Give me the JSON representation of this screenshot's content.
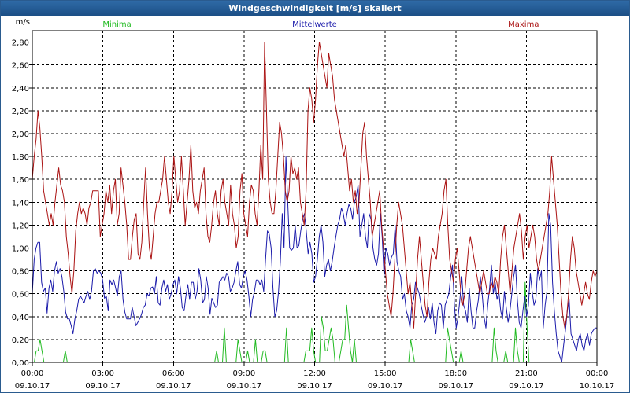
{
  "window": {
    "title": "Windgeschwindigkeit [m/s] skaliert"
  },
  "chart_data": {
    "type": "line",
    "title": "Windgeschwindigkeit [m/s] skaliert",
    "ylabel": "m/s",
    "xlabel": "",
    "ylim": [
      0,
      2.9
    ],
    "xlim": [
      0,
      24
    ],
    "grid": true,
    "yticks": [
      "0,00",
      "0,20",
      "0,40",
      "0,60",
      "0,80",
      "1,00",
      "1,20",
      "1,40",
      "1,60",
      "1,80",
      "2,00",
      "2,20",
      "2,40",
      "2,60",
      "2,80"
    ],
    "xticks": [
      {
        "time": "00:00",
        "date": "09.10.17"
      },
      {
        "time": "03:00",
        "date": "09.10.17"
      },
      {
        "time": "06:00",
        "date": "09.10.17"
      },
      {
        "time": "09:00",
        "date": "09.10.17"
      },
      {
        "time": "12:00",
        "date": "09.10.17"
      },
      {
        "time": "15:00",
        "date": "09.10.17"
      },
      {
        "time": "18:00",
        "date": "09.10.17"
      },
      {
        "time": "21:00",
        "date": "09.10.17"
      },
      {
        "time": "00:00",
        "date": "10.10.17"
      }
    ],
    "series": [
      {
        "name": "Minima",
        "color": "#22bb22",
        "values": [
          0,
          0,
          0.1,
          0.1,
          0.2,
          0.1,
          0,
          0,
          0,
          0,
          0,
          0,
          0,
          0,
          0,
          0,
          0,
          0.1,
          0,
          0,
          0,
          0,
          0,
          0,
          0,
          0,
          0,
          0,
          0,
          0,
          0,
          0,
          0,
          0,
          0,
          0,
          0,
          0,
          0,
          0,
          0,
          0,
          0,
          0,
          0,
          0,
          0,
          0,
          0,
          0,
          0,
          0,
          0,
          0,
          0,
          0,
          0,
          0,
          0,
          0,
          0,
          0,
          0,
          0,
          0,
          0,
          0,
          0,
          0,
          0,
          0,
          0,
          0,
          0,
          0,
          0,
          0,
          0,
          0,
          0,
          0,
          0,
          0,
          0,
          0,
          0,
          0,
          0,
          0,
          0,
          0,
          0,
          0,
          0,
          0,
          0.1,
          0,
          0,
          0,
          0.3,
          0,
          0,
          0,
          0,
          0,
          0,
          0.2,
          0.1,
          0,
          0,
          0,
          0.1,
          0,
          0,
          0,
          0.2,
          0,
          0,
          0,
          0.1,
          0.1,
          0,
          0,
          0,
          0,
          0,
          0,
          0,
          0,
          0,
          0,
          0.3,
          0,
          0,
          0,
          0,
          0,
          0,
          0,
          0,
          0,
          0.1,
          0.1,
          0.1,
          0.3,
          0.1,
          0,
          0,
          0,
          0.4,
          0.3,
          0.1,
          0.1,
          0.2,
          0.3,
          0.2,
          0,
          0,
          0,
          0.1,
          0.2,
          0.2,
          0.5,
          0.3,
          0.1,
          0,
          0.2,
          0,
          0,
          0,
          0,
          0,
          0,
          0,
          0,
          0,
          0,
          0,
          0,
          0,
          0,
          0,
          0,
          0,
          0,
          0,
          0,
          0,
          0,
          0,
          0,
          0,
          0,
          0,
          0,
          0.2,
          0.1,
          0,
          0,
          0,
          0,
          0,
          0,
          0,
          0,
          0,
          0,
          0,
          0,
          0,
          0,
          0,
          0,
          0,
          0.3,
          0.2,
          0.1,
          0,
          0,
          0,
          0,
          0.1,
          0,
          0,
          0,
          0,
          0,
          0,
          0,
          0,
          0,
          0,
          0,
          0,
          0,
          0,
          0,
          0,
          0.3,
          0.1,
          0,
          0,
          0,
          0,
          0.1,
          0,
          0,
          0,
          0,
          0.3,
          0.1,
          0,
          0,
          0,
          0.7,
          0.3,
          0,
          0,
          0,
          0,
          0,
          0,
          0,
          0,
          0,
          0,
          0,
          0,
          0,
          0,
          0,
          0,
          0,
          0,
          0,
          0,
          0,
          0,
          0,
          0,
          0,
          0,
          0,
          0,
          0,
          0,
          0,
          0,
          0,
          0,
          0,
          0
        ]
      },
      {
        "name": "Mittelwerte",
        "color": "#1a1aaa",
        "values": [
          0.6,
          0.9,
          1.0,
          1.05,
          1.05,
          0.7,
          0.62,
          0.65,
          0.43,
          0.65,
          0.72,
          0.62,
          0.8,
          0.88,
          0.78,
          0.82,
          0.75,
          0.62,
          0.44,
          0.38,
          0.38,
          0.32,
          0.25,
          0.38,
          0.45,
          0.55,
          0.58,
          0.55,
          0.52,
          0.58,
          0.62,
          0.55,
          0.62,
          0.8,
          0.82,
          0.78,
          0.8,
          0.78,
          0.72,
          0.56,
          0.58,
          0.45,
          0.72,
          0.68,
          0.72,
          0.65,
          0.58,
          0.75,
          0.8,
          0.55,
          0.44,
          0.38,
          0.38,
          0.38,
          0.48,
          0.4,
          0.32,
          0.35,
          0.38,
          0.42,
          0.48,
          0.5,
          0.6,
          0.58,
          0.65,
          0.66,
          0.6,
          0.75,
          0.52,
          0.5,
          0.65,
          0.72,
          0.62,
          0.68,
          0.55,
          0.6,
          0.68,
          0.72,
          0.6,
          0.75,
          0.65,
          0.48,
          0.45,
          0.58,
          0.68,
          0.55,
          0.7,
          0.7,
          0.55,
          0.62,
          0.82,
          0.72,
          0.52,
          0.55,
          0.75,
          0.65,
          0.42,
          0.56,
          0.52,
          0.48,
          0.5,
          0.7,
          0.72,
          0.75,
          0.72,
          0.78,
          0.75,
          0.62,
          0.65,
          0.7,
          0.8,
          0.88,
          0.68,
          0.65,
          0.75,
          0.8,
          0.72,
          0.58,
          0.4,
          0.55,
          0.62,
          0.72,
          0.72,
          0.68,
          0.72,
          0.62,
          0.9,
          1.15,
          1.12,
          1.0,
          0.65,
          0.4,
          0.45,
          0.62,
          0.88,
          1.3,
          1.0,
          1.8,
          1.4,
          1.0,
          0.98,
          1.0,
          1.2,
          1.0,
          1.02,
          1.15,
          1.25,
          1.3,
          1.15,
          0.95,
          1.05,
          0.95,
          0.7,
          0.75,
          0.9,
          1.1,
          1.2,
          1.05,
          0.75,
          0.85,
          0.9,
          0.8,
          0.88,
          1.0,
          1.1,
          1.2,
          1.25,
          1.35,
          1.3,
          1.2,
          1.3,
          1.38,
          1.35,
          1.25,
          1.4,
          1.45,
          1.55,
          1.1,
          1.2,
          1.3,
          1.1,
          1.0,
          1.3,
          1.25,
          1.0,
          0.9,
          0.85,
          0.95,
          1.3,
          1.1,
          0.75,
          1.0,
          0.95,
          0.85,
          0.92,
          0.95,
          1.2,
          0.88,
          0.8,
          0.75,
          0.55,
          0.6,
          0.45,
          0.4,
          0.3,
          0.5,
          0.55,
          0.7,
          0.65,
          0.6,
          0.5,
          0.42,
          0.35,
          0.4,
          0.48,
          0.38,
          0.52,
          0.35,
          0.25,
          0.45,
          0.52,
          0.5,
          0.3,
          0.5,
          0.55,
          0.6,
          0.75,
          0.85,
          0.5,
          0.3,
          0.4,
          0.55,
          0.75,
          0.5,
          0.45,
          0.35,
          0.65,
          0.45,
          0.3,
          0.3,
          0.45,
          0.55,
          0.75,
          0.6,
          0.4,
          0.3,
          0.5,
          0.65,
          0.85,
          0.6,
          0.7,
          0.55,
          0.62,
          0.45,
          0.38,
          0.62,
          0.48,
          0.35,
          0.45,
          0.6,
          0.75,
          0.85,
          0.55,
          0.35,
          0.3,
          0.45,
          0.58,
          0.4,
          0.5,
          0.78,
          0.62,
          0.5,
          0.55,
          0.82,
          0.72,
          0.8,
          0.3,
          0.5,
          0.62,
          1.3,
          1.2,
          0.7,
          0.45,
          0.25,
          0.1,
          0.05,
          0.0,
          0.15,
          0.28,
          0.45,
          0.55,
          0.25,
          0.2,
          0.15,
          0.1,
          0.2,
          0.25,
          0.15,
          0.1,
          0.2,
          0.25,
          0.15,
          0.25,
          0.28,
          0.3,
          0.3
        ]
      },
      {
        "name": "Maxima",
        "color": "#aa1111",
        "values": [
          1.6,
          1.8,
          1.95,
          2.2,
          2.05,
          1.8,
          1.5,
          1.4,
          1.3,
          1.2,
          1.3,
          1.2,
          1.4,
          1.55,
          1.7,
          1.55,
          1.5,
          1.4,
          1.1,
          0.95,
          0.75,
          0.6,
          0.8,
          1.15,
          1.3,
          1.4,
          1.3,
          1.35,
          1.3,
          1.2,
          1.35,
          1.4,
          1.5,
          1.5,
          1.5,
          1.5,
          1.1,
          1.2,
          1.3,
          1.5,
          1.4,
          1.55,
          1.3,
          1.5,
          1.6,
          1.2,
          1.3,
          1.7,
          1.55,
          1.4,
          1.2,
          0.9,
          0.9,
          1.1,
          1.25,
          1.3,
          0.95,
          0.9,
          1.05,
          1.4,
          1.7,
          1.3,
          1.0,
          0.9,
          1.1,
          1.3,
          1.4,
          1.4,
          1.5,
          1.6,
          1.8,
          1.6,
          1.4,
          1.3,
          1.5,
          1.8,
          1.6,
          1.4,
          1.5,
          1.8,
          1.5,
          1.2,
          1.4,
          1.6,
          1.9,
          1.5,
          1.35,
          1.4,
          1.3,
          1.5,
          1.6,
          1.7,
          1.3,
          1.1,
          1.05,
          1.2,
          1.4,
          1.5,
          1.3,
          1.2,
          1.5,
          1.6,
          1.4,
          1.3,
          1.2,
          1.55,
          1.3,
          1.2,
          1.0,
          1.1,
          1.5,
          1.65,
          1.3,
          1.2,
          1.1,
          1.4,
          1.55,
          1.5,
          1.3,
          1.2,
          1.5,
          1.9,
          1.6,
          2.8,
          2.2,
          1.6,
          1.4,
          1.3,
          1.3,
          1.5,
          1.8,
          2.1,
          2.0,
          1.8,
          1.5,
          1.4,
          1.5,
          1.8,
          1.65,
          1.7,
          1.6,
          1.7,
          1.4,
          1.3,
          1.2,
          1.5,
          2.2,
          2.4,
          2.3,
          2.1,
          2.3,
          2.6,
          2.8,
          2.7,
          2.6,
          2.5,
          2.4,
          2.7,
          2.6,
          2.5,
          2.3,
          2.2,
          2.1,
          2.0,
          1.9,
          1.8,
          1.9,
          1.7,
          1.5,
          1.6,
          1.4,
          1.5,
          1.3,
          1.4,
          1.7,
          2.0,
          2.1,
          1.8,
          1.6,
          1.4,
          1.1,
          1.2,
          1.3,
          1.4,
          1.5,
          1.2,
          1.0,
          0.8,
          0.6,
          0.5,
          0.4,
          0.6,
          0.9,
          1.2,
          1.4,
          1.3,
          1.2,
          1.0,
          0.8,
          0.6,
          0.7,
          0.5,
          0.3,
          0.6,
          0.9,
          1.1,
          0.9,
          0.7,
          0.5,
          0.4,
          0.7,
          0.9,
          1.0,
          0.95,
          0.9,
          1.1,
          1.2,
          1.3,
          1.5,
          1.6,
          1.2,
          0.9,
          0.8,
          0.7,
          0.9,
          1.0,
          0.8,
          0.6,
          0.5,
          0.6,
          0.8,
          1.0,
          1.1,
          1.0,
          0.9,
          0.8,
          0.7,
          0.6,
          0.7,
          0.8,
          0.7,
          0.6,
          0.6,
          0.7,
          0.65,
          0.75,
          0.7,
          0.6,
          0.9,
          1.1,
          1.2,
          1.0,
          0.8,
          0.6,
          0.8,
          1.0,
          1.1,
          1.2,
          1.3,
          1.15,
          0.9,
          1.1,
          1.2,
          1.0,
          1.1,
          1.2,
          1.1,
          0.9,
          0.8,
          0.9,
          1.0,
          1.1,
          1.2,
          1.3,
          1.5,
          1.8,
          1.6,
          1.4,
          1.2,
          0.9,
          0.6,
          0.4,
          0.3,
          0.4,
          0.6,
          0.9,
          1.1,
          1.0,
          0.8,
          0.7,
          0.6,
          0.5,
          0.6,
          0.7,
          0.6,
          0.55,
          0.7,
          0.8,
          0.75,
          0.8
        ]
      }
    ]
  }
}
